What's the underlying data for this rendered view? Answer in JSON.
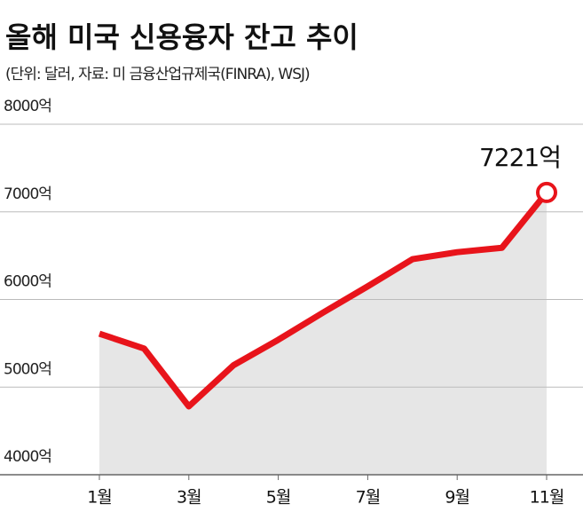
{
  "chart_data": {
    "type": "line",
    "title": "올해 미국 신용융자 잔고 추이",
    "subtitle": "(단위: 달러, 자료: 미 금융산업규제국(FINRA), WSJ)",
    "categories": [
      "1월",
      null,
      "3월",
      null,
      "5월",
      null,
      "7월",
      null,
      "9월",
      null,
      "11월"
    ],
    "values": [
      5610,
      5440,
      4780,
      5250,
      5540,
      5850,
      6150,
      6460,
      6540,
      6590,
      7221
    ],
    "value_labels": [
      null,
      null,
      null,
      null,
      null,
      null,
      null,
      null,
      null,
      null,
      "7221억"
    ],
    "color": "#e8141b",
    "ylim": [
      4000,
      8000
    ],
    "yticks": [
      {
        "value": 4000,
        "label": "4000억"
      },
      {
        "value": 5000,
        "label": "5000억"
      },
      {
        "value": 6000,
        "label": "6000억"
      },
      {
        "value": 7000,
        "label": "7000억"
      },
      {
        "value": 8000,
        "label": "8000억"
      }
    ],
    "grid": true
  }
}
